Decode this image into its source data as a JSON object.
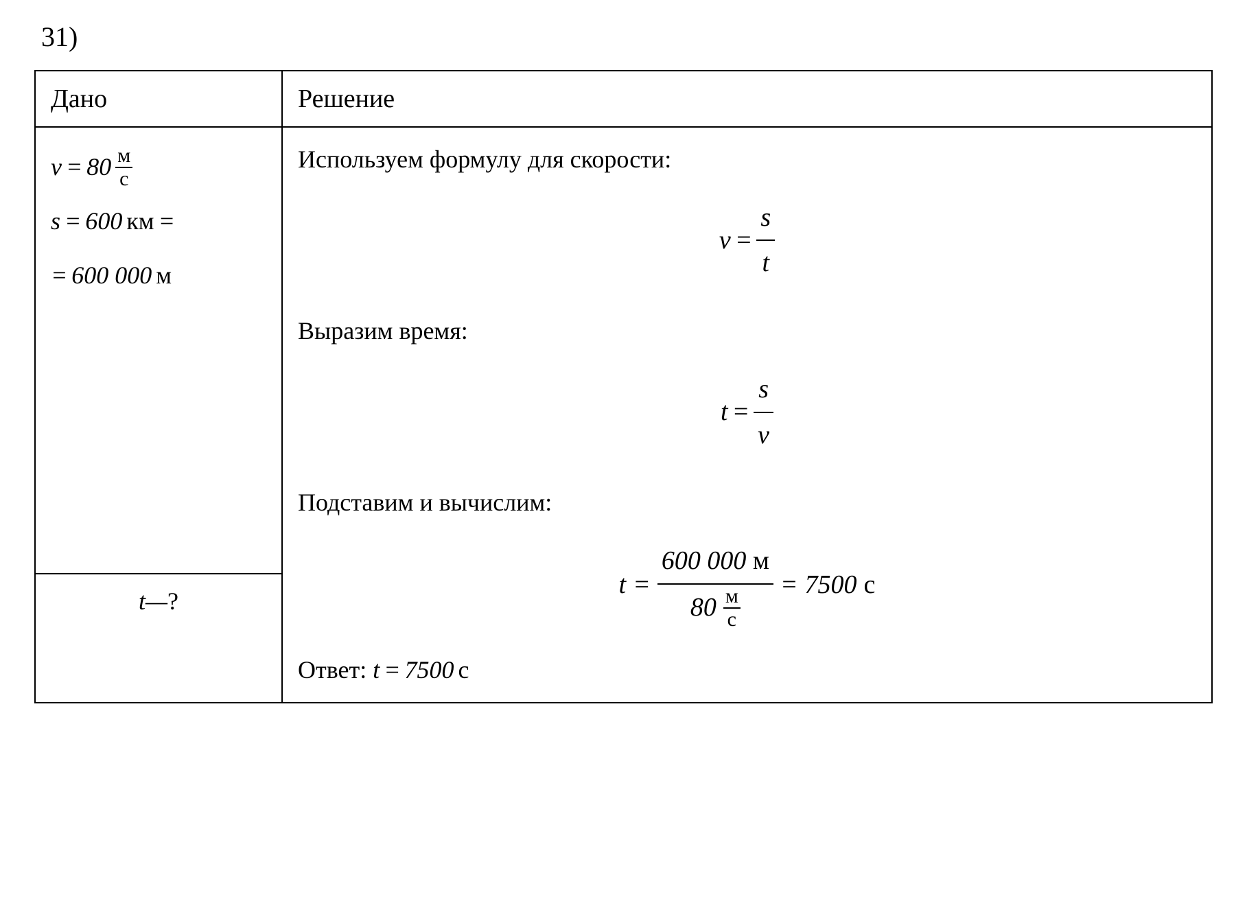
{
  "problem": {
    "number": "31)"
  },
  "headers": {
    "given": "Дано",
    "solution": "Решение"
  },
  "given": {
    "velocity_var": "v",
    "velocity_eq": "=",
    "velocity_val": "80",
    "velocity_unit_num": "м",
    "velocity_unit_den": "с",
    "distance_var": "s",
    "distance_eq": "=",
    "distance_val": "600",
    "distance_unit": "км",
    "distance_eq2": "=",
    "distance_eq3": "=",
    "distance_val_m": "600 000",
    "distance_unit_m": "м"
  },
  "find": {
    "time_var": "t",
    "dash": "—",
    "question": "?"
  },
  "solution": {
    "step1": "Используем формулу для скорости:",
    "formula1_lhs": "v",
    "formula1_eq": "=",
    "formula1_num": "s",
    "formula1_den": "t",
    "step2": "Выразим время:",
    "formula2_lhs": "t",
    "formula2_eq": "=",
    "formula2_num": "s",
    "formula2_den": "v",
    "step3": "Подставим и вычислим:",
    "calc_lhs": "t",
    "calc_eq1": "=",
    "calc_num_val": "600 000",
    "calc_num_unit": "м",
    "calc_den_val": "80",
    "calc_den_unit_num": "м",
    "calc_den_unit_den": "с",
    "calc_eq2": "=",
    "calc_result_val": "7500",
    "calc_result_unit": "с",
    "answer_label": "Ответ:",
    "answer_var": "t",
    "answer_eq": "=",
    "answer_val": "7500",
    "answer_unit": "с"
  },
  "style": {
    "background": "#ffffff",
    "text_color": "#000000",
    "border_color": "#000000",
    "font_family": "Times New Roman",
    "base_fontsize_pt": 28,
    "header_fontsize_pt": 30,
    "formula_fontsize_pt": 30
  }
}
